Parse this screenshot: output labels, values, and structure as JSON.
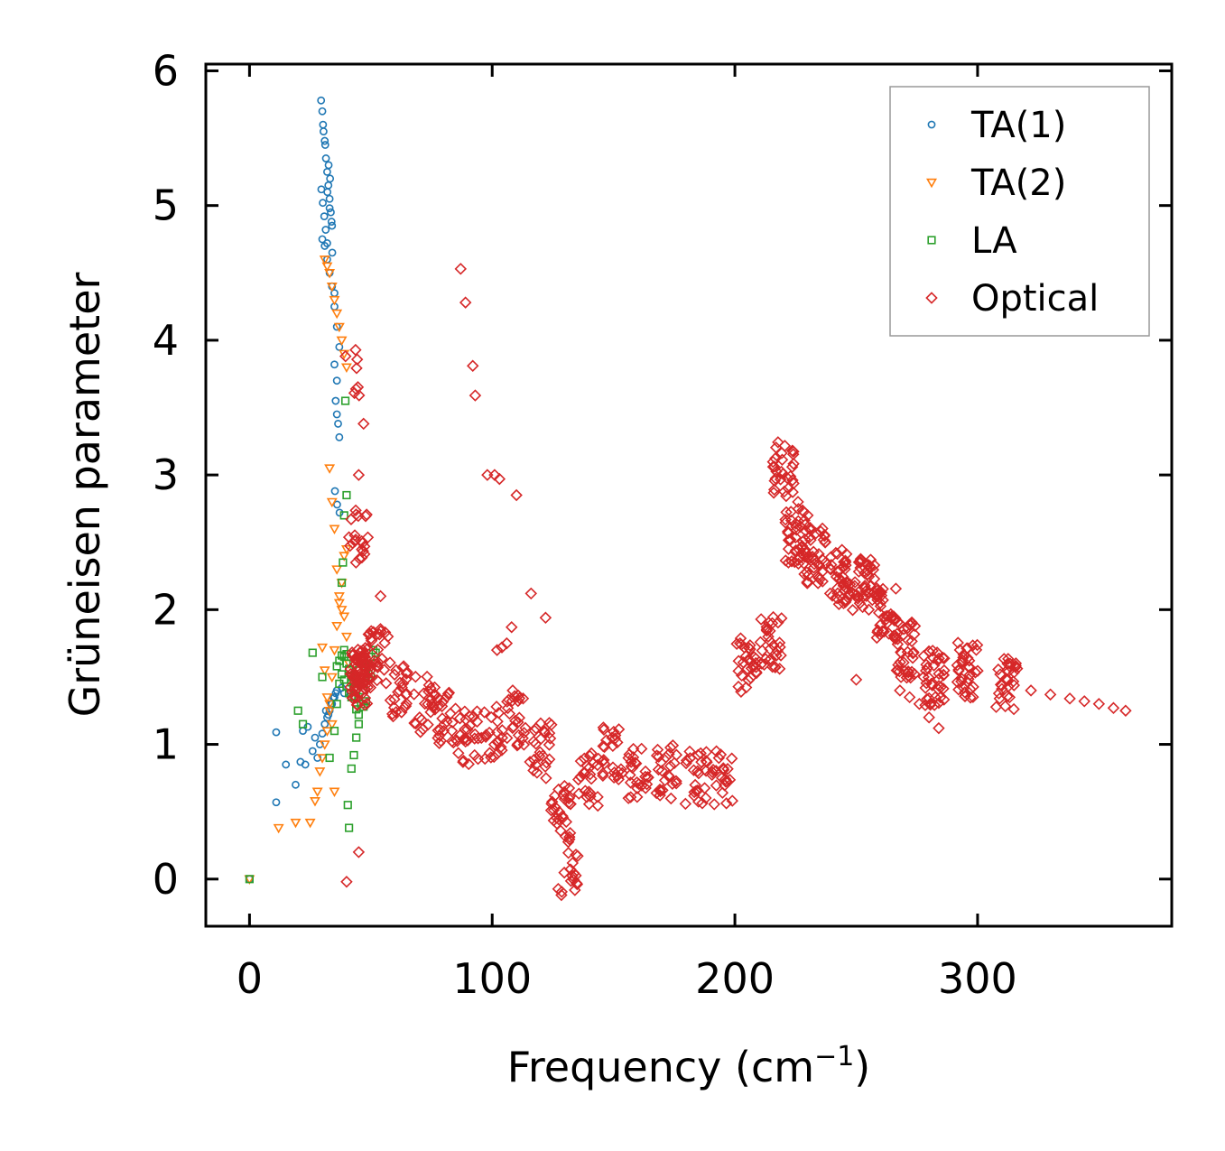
{
  "chart_data": {
    "type": "scatter",
    "xlabel": "Frequency (cm",
    "xlabel_sup": "−1",
    "xlabel_close": ")",
    "ylabel": "Grüneisen parameter",
    "xlim": [
      -18,
      380
    ],
    "ylim": [
      -0.35,
      6.05
    ],
    "xticks": [
      0,
      100,
      200,
      300
    ],
    "yticks": [
      0,
      1,
      2,
      3,
      4,
      5,
      6
    ],
    "legend_position": "top-right",
    "series": [
      {
        "name": "TA(1)",
        "marker": "circle",
        "color": "#1f77b4",
        "x": [
          0,
          11,
          11,
          15,
          19,
          21,
          22,
          23,
          24,
          26,
          27,
          28,
          29,
          30,
          31,
          32,
          33,
          34,
          35,
          36,
          29.5,
          30,
          30.5,
          31,
          31.5,
          32,
          32.5,
          33,
          33.5,
          34,
          29.6,
          30.2,
          30.8,
          31.4,
          32,
          32.6,
          33.2,
          33.8,
          30,
          31,
          32,
          33,
          34,
          35,
          36,
          37,
          35,
          35.5,
          36,
          36.5,
          37,
          35.2,
          36.1,
          37.1,
          38,
          39,
          30.3,
          31.2,
          32.1,
          33,
          34.1,
          35,
          36,
          31.5,
          32.5,
          33.5,
          34.5,
          35.5
        ],
        "y": [
          0,
          1.09,
          0.57,
          0.85,
          0.7,
          0.87,
          1.1,
          0.85,
          1.13,
          0.95,
          1.05,
          0.9,
          1.0,
          1.08,
          1.15,
          1.2,
          1.25,
          1.3,
          1.35,
          1.4,
          5.78,
          5.7,
          5.55,
          5.48,
          5.35,
          5.25,
          5.15,
          5.05,
          4.95,
          4.85,
          5.12,
          5.02,
          4.92,
          4.82,
          4.72,
          5.3,
          5.2,
          4.88,
          4.75,
          4.7,
          4.6,
          4.5,
          4.4,
          4.25,
          4.1,
          3.95,
          3.82,
          3.55,
          3.45,
          3.38,
          3.28,
          2.88,
          2.78,
          2.72,
          1.42,
          1.38,
          5.6,
          5.45,
          5.1,
          4.98,
          4.65,
          4.35,
          3.7,
          1.25,
          1.22,
          1.3,
          1.35,
          1.38
        ]
      },
      {
        "name": "TA(2)",
        "marker": "triangle-down",
        "color": "#ff7f0e",
        "x": [
          0,
          12,
          19,
          25,
          27,
          28,
          29,
          30,
          31,
          32,
          33,
          34,
          35,
          36,
          37,
          38,
          39,
          40,
          31,
          32,
          33,
          34,
          35,
          36,
          37,
          38,
          39,
          40,
          33,
          34,
          35,
          36,
          37,
          38,
          39,
          40,
          41,
          30,
          31,
          32,
          33,
          34,
          35
        ],
        "y": [
          0,
          0.38,
          0.42,
          0.42,
          0.58,
          0.65,
          0.8,
          0.9,
          1.0,
          1.1,
          1.3,
          1.5,
          1.7,
          1.88,
          2.05,
          2.2,
          2.4,
          2.45,
          4.6,
          4.55,
          4.5,
          4.4,
          4.3,
          4.2,
          4.1,
          4.0,
          3.9,
          3.8,
          3.05,
          2.8,
          2.6,
          2.3,
          2.1,
          2.0,
          1.95,
          1.8,
          1.6,
          1.72,
          1.55,
          1.35,
          1.25,
          1.15,
          0.65
        ]
      },
      {
        "name": "LA",
        "marker": "square",
        "color": "#2ca02c",
        "x": [
          0,
          20,
          22,
          26,
          30,
          33,
          35,
          36,
          37,
          38,
          38.5,
          39,
          39.5,
          40,
          40.5,
          41,
          42,
          43,
          44,
          45,
          46,
          47,
          48,
          49,
          50,
          51,
          52,
          38,
          39,
          40,
          41,
          42,
          43,
          44,
          45,
          46,
          47,
          48,
          49,
          50,
          39,
          40,
          41,
          42,
          43,
          44,
          45,
          46,
          47,
          48,
          36,
          37,
          38,
          39,
          40,
          41,
          42,
          43,
          44,
          45
        ],
        "y": [
          0,
          1.25,
          1.15,
          1.68,
          1.5,
          0.9,
          1.1,
          1.3,
          1.45,
          2.2,
          2.35,
          2.7,
          3.55,
          2.85,
          0.55,
          0.38,
          0.82,
          0.92,
          1.05,
          1.15,
          1.3,
          1.45,
          1.55,
          1.6,
          1.65,
          1.7,
          1.68,
          1.52,
          1.48,
          1.43,
          1.38,
          1.35,
          1.42,
          1.48,
          1.55,
          1.6,
          1.62,
          1.58,
          1.52,
          1.5,
          1.65,
          1.6,
          1.55,
          1.5,
          1.45,
          1.4,
          1.35,
          1.3,
          1.28,
          1.32,
          1.58,
          1.62,
          1.66,
          1.7,
          1.67,
          1.56,
          1.46,
          1.36,
          1.26,
          1.22
        ]
      },
      {
        "name": "Optical",
        "marker": "diamond",
        "color": "#d62728",
        "clusters": [
          {
            "x": 42.5,
            "y": 3.72,
            "n": 8
          },
          {
            "x": 44.5,
            "y": 2.55,
            "n": 22
          },
          {
            "x": 46,
            "y": 1.5,
            "n": 70
          },
          {
            "x": 52,
            "y": 1.65,
            "n": 25
          },
          {
            "x": 62,
            "y": 1.4,
            "n": 25
          },
          {
            "x": 72,
            "y": 1.3,
            "n": 25
          },
          {
            "x": 82,
            "y": 1.2,
            "n": 25
          },
          {
            "x": 90,
            "y": 1.05,
            "n": 25
          },
          {
            "x": 100,
            "y": 1.1,
            "n": 22
          },
          {
            "x": 110,
            "y": 1.2,
            "n": 25
          },
          {
            "x": 120,
            "y": 0.95,
            "n": 25
          },
          {
            "x": 128,
            "y": 0.5,
            "n": 30
          },
          {
            "x": 131,
            "y": 0.08,
            "n": 18
          },
          {
            "x": 140,
            "y": 0.75,
            "n": 25
          },
          {
            "x": 150,
            "y": 0.95,
            "n": 25
          },
          {
            "x": 160,
            "y": 0.8,
            "n": 25
          },
          {
            "x": 172,
            "y": 0.8,
            "n": 25
          },
          {
            "x": 184,
            "y": 0.75,
            "n": 25
          },
          {
            "x": 195,
            "y": 0.75,
            "n": 22
          },
          {
            "x": 205,
            "y": 1.6,
            "n": 30
          },
          {
            "x": 215,
            "y": 1.75,
            "n": 30
          },
          {
            "x": 220,
            "y": 3.05,
            "n": 30
          },
          {
            "x": 225,
            "y": 2.55,
            "n": 40
          },
          {
            "x": 233,
            "y": 2.4,
            "n": 40
          },
          {
            "x": 243,
            "y": 2.25,
            "n": 40
          },
          {
            "x": 253,
            "y": 2.2,
            "n": 40
          },
          {
            "x": 262,
            "y": 2.0,
            "n": 40
          },
          {
            "x": 270,
            "y": 1.7,
            "n": 40
          },
          {
            "x": 282,
            "y": 1.5,
            "n": 40
          },
          {
            "x": 296,
            "y": 1.55,
            "n": 35
          },
          {
            "x": 312,
            "y": 1.45,
            "n": 30
          }
        ],
        "x": [
          87,
          89,
          92,
          93,
          98,
          101,
          103,
          108,
          110,
          116,
          122,
          322,
          330,
          338,
          344,
          350,
          356,
          361,
          40,
          45,
          47,
          45,
          54,
          57,
          102,
          104,
          106,
          222,
          226,
          230,
          250,
          268,
          272,
          276,
          280,
          284
        ],
        "y": [
          4.53,
          4.28,
          3.81,
          3.59,
          3.0,
          3.0,
          2.97,
          1.87,
          2.85,
          2.12,
          1.94,
          1.4,
          1.37,
          1.34,
          1.32,
          1.3,
          1.27,
          1.25,
          -0.02,
          0.2,
          3.38,
          3.0,
          2.1,
          1.8,
          1.7,
          1.72,
          1.75,
          2.9,
          2.8,
          2.7,
          1.48,
          1.4,
          1.35,
          1.3,
          1.2,
          1.12
        ]
      }
    ]
  }
}
